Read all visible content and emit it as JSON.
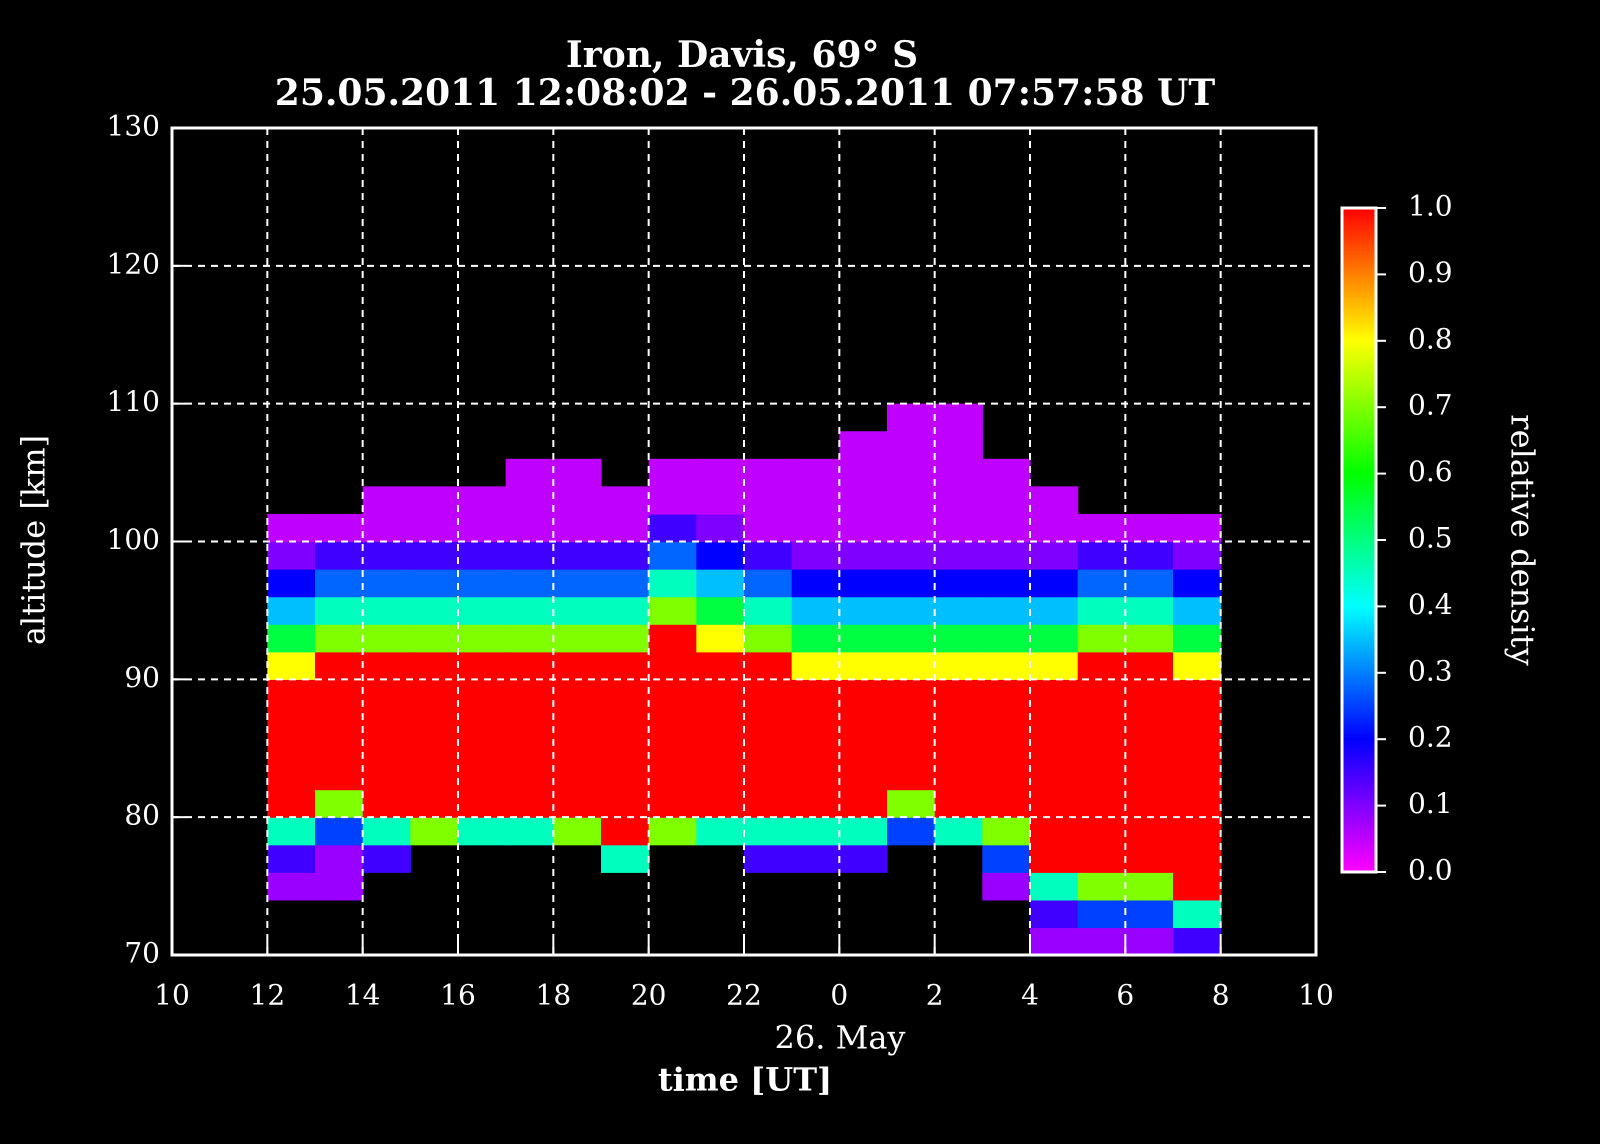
{
  "chart_data": {
    "type": "heatmap",
    "title": "Iron, Davis, 69° S",
    "subtitle": "25.05.2011 12:08:02 - 26.05.2011 07:57:58 UT",
    "x_label": "time [UT]",
    "x_annotation": "26. May",
    "y_label": "altitude [km]",
    "colorbar_label": "relative density",
    "xlim": [
      10,
      34
    ],
    "xticks": [
      10,
      12,
      14,
      16,
      18,
      20,
      22,
      {
        "value": 24,
        "label": "0"
      },
      {
        "value": 26,
        "label": "2"
      },
      {
        "value": 28,
        "label": "4"
      },
      {
        "value": 30,
        "label": "6"
      },
      {
        "value": 32,
        "label": "8"
      },
      {
        "value": 34,
        "label": "10"
      }
    ],
    "ylim": [
      70,
      130
    ],
    "yticks": [
      70,
      80,
      90,
      100,
      110,
      120,
      130
    ],
    "zlim": [
      0,
      1
    ],
    "zticks": [
      {
        "value": 0,
        "label": "0.0"
      },
      0.1,
      0.2,
      0.3,
      0.4,
      0.5,
      0.6,
      0.7,
      0.8,
      0.9,
      {
        "value": 1,
        "label": "1.0"
      }
    ],
    "colorscale": [
      "#ff00ff",
      "#0000ff",
      "#00ffff",
      "#00ff00",
      "#ffff00",
      "#ff0000"
    ],
    "grid": true,
    "x": [
      12.5,
      13.5,
      14.5,
      15.5,
      16.5,
      17.5,
      18.5,
      19.5,
      20.5,
      21.5,
      22.5,
      23.5,
      24.5,
      25.5,
      26.5,
      27.5,
      28.5,
      29.5,
      30.5,
      31.5
    ],
    "y": [
      71,
      73,
      75,
      77,
      79,
      81,
      83,
      85,
      87,
      89,
      91,
      93,
      95,
      97,
      99,
      101,
      103,
      105,
      107,
      109
    ],
    "z": [
      [
        null,
        null,
        0.08,
        0.15,
        0.45,
        1,
        1,
        1,
        1,
        1,
        0.8,
        0.55,
        0.35,
        0.2,
        0.1,
        0.05,
        null,
        null,
        null,
        null
      ],
      [
        null,
        null,
        0.08,
        0.08,
        0.25,
        0.7,
        1,
        1,
        1,
        1,
        1,
        0.7,
        0.45,
        0.28,
        0.15,
        0.05,
        null,
        null,
        null,
        null
      ],
      [
        null,
        null,
        null,
        0.15,
        0.45,
        1,
        1,
        1,
        1,
        1,
        1,
        0.7,
        0.45,
        0.28,
        0.15,
        0.05,
        0.05,
        null,
        null,
        null
      ],
      [
        null,
        null,
        null,
        null,
        0.7,
        1,
        1,
        1,
        1,
        1,
        1,
        0.7,
        0.45,
        0.28,
        0.15,
        0.05,
        0.05,
        null,
        null,
        null
      ],
      [
        null,
        null,
        null,
        null,
        0.45,
        1,
        1,
        1,
        1,
        1,
        1,
        0.7,
        0.45,
        0.28,
        0.15,
        0.05,
        0.05,
        null,
        null,
        null
      ],
      [
        null,
        null,
        null,
        null,
        0.45,
        1,
        1,
        1,
        1,
        1,
        1,
        0.7,
        0.45,
        0.28,
        0.15,
        0.05,
        0.05,
        0.05,
        null,
        null
      ],
      [
        null,
        null,
        null,
        null,
        0.7,
        1,
        1,
        1,
        1,
        1,
        1,
        0.7,
        0.45,
        0.28,
        0.15,
        0.05,
        0.05,
        0.05,
        null,
        null
      ],
      [
        null,
        null,
        null,
        0.45,
        1,
        1,
        1,
        1,
        1,
        1,
        1,
        0.7,
        0.45,
        0.28,
        0.15,
        0.05,
        0.05,
        null,
        null,
        null
      ],
      [
        null,
        null,
        null,
        null,
        0.7,
        1,
        1,
        1,
        1,
        1,
        1,
        1,
        0.7,
        0.45,
        0.28,
        0.15,
        0.05,
        0.05,
        null,
        null
      ],
      [
        null,
        null,
        null,
        null,
        0.45,
        1,
        1,
        1,
        1,
        1,
        1,
        0.8,
        0.55,
        0.35,
        0.2,
        0.1,
        0.05,
        0.05,
        null,
        null
      ],
      [
        null,
        null,
        null,
        0.15,
        0.45,
        1,
        1,
        1,
        1,
        1,
        1,
        0.7,
        0.45,
        0.28,
        0.15,
        0.05,
        0.05,
        0.05,
        null,
        null
      ],
      [
        null,
        null,
        null,
        0.15,
        0.45,
        1,
        1,
        1,
        1,
        1,
        0.8,
        0.55,
        0.35,
        0.2,
        0.1,
        0.05,
        0.05,
        0.05,
        null,
        null
      ],
      [
        null,
        null,
        null,
        0.15,
        0.45,
        1,
        1,
        1,
        1,
        1,
        0.8,
        0.55,
        0.35,
        0.2,
        0.1,
        0.05,
        0.05,
        0.05,
        0.05,
        null
      ],
      [
        null,
        null,
        null,
        null,
        0.25,
        0.7,
        1,
        1,
        1,
        1,
        0.8,
        0.55,
        0.35,
        0.2,
        0.1,
        0.05,
        0.05,
        0.05,
        0.05,
        0.05
      ],
      [
        null,
        null,
        null,
        null,
        0.45,
        1,
        1,
        1,
        1,
        1,
        0.8,
        0.55,
        0.35,
        0.2,
        0.1,
        0.05,
        0.05,
        0.05,
        0.05,
        0.05
      ],
      [
        null,
        null,
        0.08,
        0.25,
        0.7,
        1,
        1,
        1,
        1,
        1,
        0.8,
        0.55,
        0.35,
        0.2,
        0.1,
        0.05,
        0.05,
        0.05,
        null,
        null
      ],
      [
        0.08,
        0.15,
        0.45,
        1,
        1,
        1,
        1,
        1,
        1,
        1,
        0.8,
        0.55,
        0.35,
        0.2,
        0.1,
        0.05,
        0.05,
        null,
        null,
        null
      ],
      [
        0.08,
        0.25,
        0.7,
        1,
        1,
        1,
        1,
        1,
        1,
        1,
        1,
        0.7,
        0.45,
        0.28,
        0.15,
        0.05,
        null,
        null,
        null,
        null
      ],
      [
        0.08,
        0.25,
        0.7,
        1,
        1,
        1,
        1,
        1,
        1,
        1,
        1,
        0.7,
        0.45,
        0.28,
        0.15,
        0.05,
        null,
        null,
        null,
        null
      ],
      [
        0.15,
        0.45,
        1,
        1,
        1,
        1,
        1,
        1,
        1,
        1,
        0.8,
        0.55,
        0.35,
        0.2,
        0.1,
        0.05,
        null,
        null,
        null,
        null
      ]
    ]
  }
}
